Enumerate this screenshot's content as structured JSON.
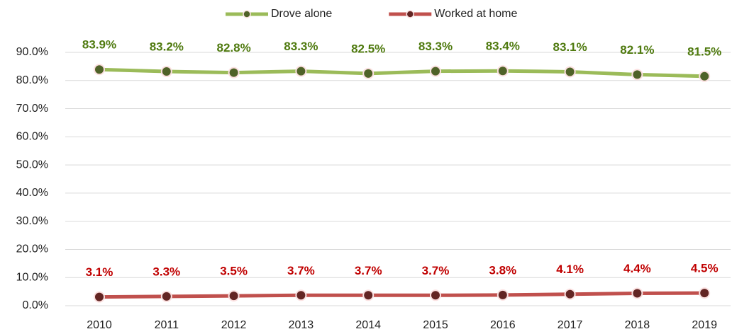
{
  "chart_data": {
    "type": "line",
    "categories": [
      "2010",
      "2011",
      "2012",
      "2013",
      "2014",
      "2015",
      "2016",
      "2017",
      "2018",
      "2019"
    ],
    "series": [
      {
        "name": "Drove alone",
        "color": "#9bbb59",
        "marker_color": "#4f6228",
        "label_color": "#4f7a0f",
        "values": [
          83.9,
          83.2,
          82.8,
          83.3,
          82.5,
          83.3,
          83.4,
          83.1,
          82.1,
          81.5
        ],
        "value_labels": [
          "83.9%",
          "83.2%",
          "82.8%",
          "83.3%",
          "82.5%",
          "83.3%",
          "83.4%",
          "83.1%",
          "82.1%",
          "81.5%"
        ]
      },
      {
        "name": "Worked at home",
        "color": "#c0504d",
        "marker_color": "#632523",
        "label_color": "#c00000",
        "values": [
          3.1,
          3.3,
          3.5,
          3.7,
          3.7,
          3.7,
          3.8,
          4.1,
          4.4,
          4.5
        ],
        "value_labels": [
          "3.1%",
          "3.3%",
          "3.5%",
          "3.7%",
          "3.7%",
          "3.7%",
          "3.8%",
          "4.1%",
          "4.4%",
          "4.5%"
        ]
      }
    ],
    "ylim": [
      0,
      90
    ],
    "yticks": [
      {
        "value": 0,
        "label": "0.0%"
      },
      {
        "value": 10,
        "label": "10.0%"
      },
      {
        "value": 20,
        "label": "20.0%"
      },
      {
        "value": 30,
        "label": "30.0%"
      },
      {
        "value": 40,
        "label": "40.0%"
      },
      {
        "value": 50,
        "label": "50.0%"
      },
      {
        "value": 60,
        "label": "60.0%"
      },
      {
        "value": 70,
        "label": "70.0%"
      },
      {
        "value": 80,
        "label": "80.0%"
      },
      {
        "value": 90,
        "label": "90.0%"
      }
    ],
    "grid": true,
    "legend": "top"
  }
}
